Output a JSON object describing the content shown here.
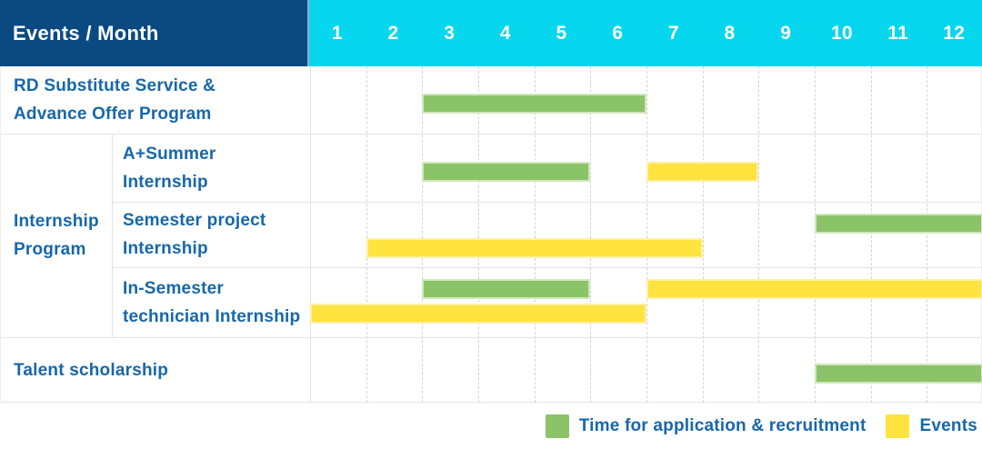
{
  "title_cell": "Events / Month",
  "months": [
    "1",
    "2",
    "3",
    "4",
    "5",
    "6",
    "7",
    "8",
    "9",
    "10",
    "11",
    "12"
  ],
  "colors": {
    "header_bg": "#0b4a81",
    "month_header_bg": "#06d7ee",
    "green": "#8bc368",
    "green_edge": "#d2e7bd",
    "yellow": "#ffe33e",
    "yellow_edge": "#fff0a6",
    "label_text": "#1767a9",
    "grid_solid": "#e4e4e4",
    "grid_dashed": "#d4d4d4"
  },
  "chart_data": {
    "type": "gantt",
    "x_unit": "month",
    "x_range": [
      1,
      12
    ],
    "series": [
      {
        "name": "Time for application & recruitment",
        "color_key": "green"
      },
      {
        "name": "Events",
        "color_key": "yellow"
      }
    ],
    "rows": [
      {
        "label": "RD Substitute Service &\nAdvance Offer Program",
        "group": "",
        "bars": [
          {
            "series": 0,
            "start_month": 3,
            "end_month": 6,
            "line": 0
          }
        ]
      },
      {
        "label": "A+Summer\nInternship",
        "group": "Internship\nProgram",
        "bars": [
          {
            "series": 0,
            "start_month": 3,
            "end_month": 5,
            "line": 0
          },
          {
            "series": 1,
            "start_month": 7,
            "end_month": 8,
            "line": 0
          }
        ]
      },
      {
        "label": "Semester project\nInternship",
        "group": "Internship\nProgram",
        "bars": [
          {
            "series": 0,
            "start_month": 10,
            "end_month": 12,
            "line": 0
          },
          {
            "series": 1,
            "start_month": 2,
            "end_month": 7,
            "line": 1
          }
        ]
      },
      {
        "label": "In-Semester\ntechnician Internship",
        "group": "Internship\nProgram",
        "bars": [
          {
            "series": 0,
            "start_month": 3,
            "end_month": 5,
            "line": 0
          },
          {
            "series": 1,
            "start_month": 7,
            "end_month": 12,
            "line": 0
          },
          {
            "series": 1,
            "start_month": 1,
            "end_month": 6,
            "line": 1
          }
        ]
      },
      {
        "label": "Talent scholarship",
        "group": "",
        "bars": [
          {
            "series": 0,
            "start_month": 10,
            "end_month": 12,
            "line": 0
          }
        ]
      }
    ]
  },
  "legend": {
    "items": [
      {
        "label": "Time for application & recruitment",
        "color_key": "green"
      },
      {
        "label": "Events",
        "color_key": "yellow"
      }
    ]
  }
}
